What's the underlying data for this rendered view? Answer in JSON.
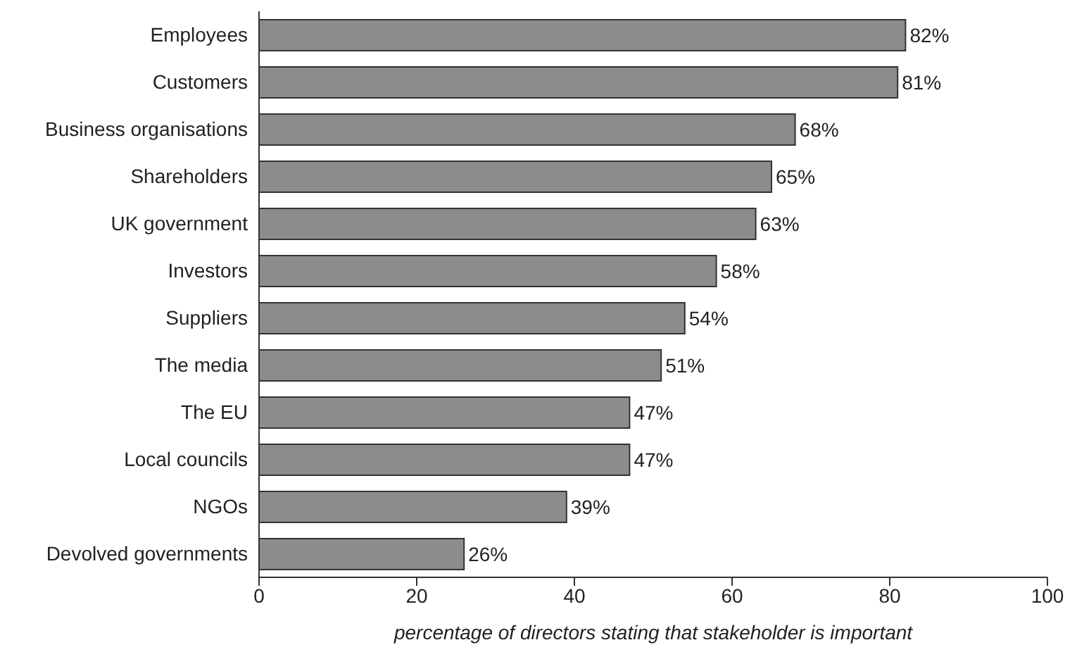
{
  "chart_data": {
    "type": "bar",
    "orientation": "horizontal",
    "xlabel": "percentage of directors stating that stakeholder is important",
    "categories": [
      "Employees",
      "Customers",
      "Business organisations",
      "Shareholders",
      "UK government",
      "Investors",
      "Suppliers",
      "The media",
      "The EU",
      "Local councils",
      "NGOs",
      "Devolved governments"
    ],
    "values": [
      82,
      81,
      68,
      65,
      63,
      58,
      54,
      51,
      47,
      47,
      39,
      26
    ],
    "value_labels": [
      "82%",
      "81%",
      "68%",
      "65%",
      "63%",
      "58%",
      "54%",
      "51%",
      "47%",
      "47%",
      "39%",
      "26%"
    ],
    "color": "#8c8c8c",
    "xlim": [
      0,
      100
    ],
    "xticks": [
      0,
      20,
      40,
      60,
      80,
      100
    ],
    "grid": false,
    "legend": false
  }
}
